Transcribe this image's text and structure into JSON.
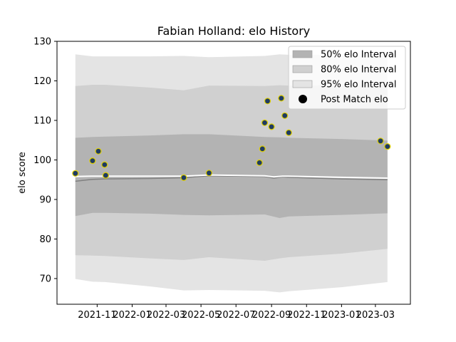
{
  "chart_data": {
    "type": "line",
    "title": "Fabian Holland: elo History",
    "xlabel": "",
    "ylabel": "elo score",
    "xlim": [
      "2021-08-23",
      "2023-05-01"
    ],
    "ylim": [
      63.5,
      130
    ],
    "y_ticks": [
      70,
      80,
      90,
      100,
      110,
      120,
      130
    ],
    "x_ticks": [
      "2021-11",
      "2022-01",
      "2022-03",
      "2022-05",
      "2022-07",
      "2022-09",
      "2022-11",
      "2023-01",
      "2023-03"
    ],
    "grid": false,
    "legend_placement": "top-right",
    "colors": {
      "band_50": "#b3b3b3",
      "band_80": "#d0d0d0",
      "band_95": "#e4e4e4",
      "median_line": "#808080",
      "mean_line": "#ffffff",
      "point_fill": "#1f3b63",
      "point_edge": "#e0d000"
    },
    "legend": [
      {
        "label": "50% elo Interval",
        "kind": "patch",
        "color": "#b3b3b3"
      },
      {
        "label": "80% elo Interval",
        "kind": "patch",
        "color": "#d0d0d0"
      },
      {
        "label": "95% elo Interval",
        "kind": "patch",
        "color": "#e4e4e4"
      },
      {
        "label": "Post Match elo",
        "kind": "marker",
        "color": "#000000"
      }
    ],
    "bands": {
      "x": [
        "2021-09-24",
        "2021-10-24",
        "2021-11-15",
        "2022-02-01",
        "2022-04-01",
        "2022-05-15",
        "2022-08-20",
        "2022-09-15",
        "2022-10-01",
        "2023-01-01",
        "2023-03-22"
      ],
      "p95": {
        "upper": [
          126.7,
          126.2,
          126.2,
          126.2,
          126.3,
          126.0,
          126.3,
          126.7,
          126.6,
          126.5,
          126.2
        ],
        "lower": [
          69.9,
          69.2,
          69.1,
          68.0,
          67.0,
          67.1,
          66.9,
          66.5,
          66.8,
          67.8,
          69.1
        ]
      },
      "p80": {
        "upper": [
          118.7,
          119.0,
          119.0,
          118.3,
          117.6,
          118.8,
          118.7,
          118.9,
          118.8,
          118.9,
          118.7
        ],
        "lower": [
          75.9,
          75.8,
          75.7,
          75.1,
          74.7,
          75.4,
          74.5,
          75.1,
          75.4,
          76.3,
          77.5
        ]
      },
      "p50": {
        "upper": [
          105.6,
          105.8,
          105.9,
          106.2,
          106.5,
          106.5,
          105.8,
          105.7,
          105.6,
          105.3,
          104.9
        ],
        "lower": [
          85.8,
          86.6,
          86.6,
          86.4,
          86.1,
          86.0,
          86.2,
          85.3,
          85.7,
          86.1,
          86.5
        ]
      }
    },
    "series": [
      {
        "kind": "median",
        "x": [
          "2021-09-24",
          "2021-10-24",
          "2021-11-15",
          "2022-02-01",
          "2022-04-01",
          "2022-05-15",
          "2022-08-20",
          "2022-09-05",
          "2022-09-20",
          "2022-10-01",
          "2023-01-01",
          "2023-03-22"
        ],
        "values": [
          94.6,
          95.1,
          95.2,
          95.3,
          95.5,
          96.0,
          95.8,
          95.4,
          95.7,
          95.6,
          95.2,
          95.0
        ]
      },
      {
        "kind": "mean",
        "x": [
          "2021-09-24",
          "2021-10-24",
          "2021-11-15",
          "2022-02-01",
          "2022-04-01",
          "2022-05-15",
          "2022-08-20",
          "2022-09-05",
          "2022-09-20",
          "2022-10-01",
          "2023-01-01",
          "2023-03-22"
        ],
        "values": [
          95.8,
          95.9,
          95.9,
          95.9,
          95.9,
          96.2,
          96.0,
          95.7,
          95.9,
          95.9,
          95.6,
          95.4
        ]
      }
    ],
    "points": {
      "x": [
        "2021-09-24",
        "2021-10-24",
        "2021-11-03",
        "2021-11-14",
        "2021-11-16",
        "2022-04-01",
        "2022-05-15",
        "2022-08-11",
        "2022-08-16",
        "2022-08-20",
        "2022-08-25",
        "2022-09-01",
        "2022-09-18",
        "2022-09-24",
        "2022-10-01",
        "2023-03-10",
        "2023-03-22"
      ],
      "values": [
        96.6,
        99.8,
        102.2,
        98.8,
        96.1,
        95.5,
        96.7,
        99.3,
        102.8,
        109.4,
        114.9,
        108.4,
        115.6,
        111.2,
        106.9,
        104.8,
        103.4
      ]
    }
  }
}
